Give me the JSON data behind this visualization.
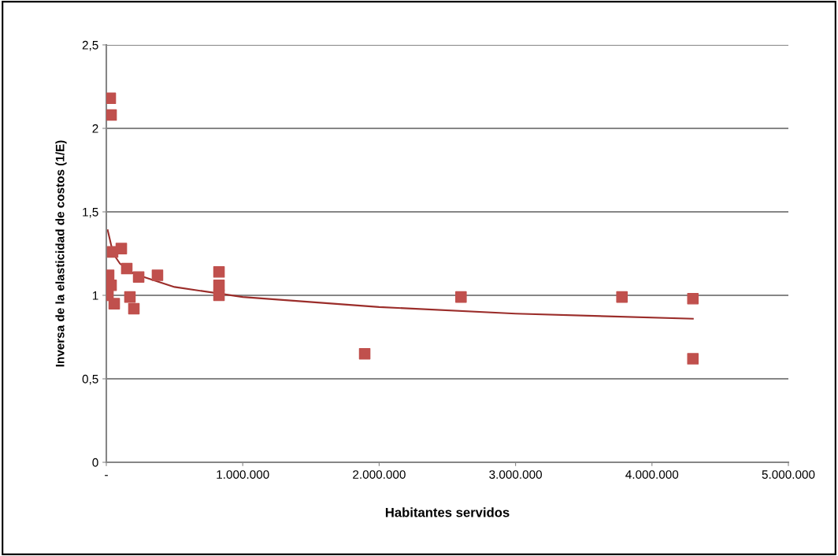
{
  "chart_data": {
    "type": "scatter",
    "xlabel": "Habitantes servidos",
    "ylabel": "Inversa de la elasticidad de costos (1/E)",
    "xlim": [
      0,
      5000000
    ],
    "ylim": [
      0,
      2.5
    ],
    "xticks": [
      {
        "value": 0,
        "label": "-"
      },
      {
        "value": 1000000,
        "label": "1.000.000"
      },
      {
        "value": 2000000,
        "label": "2.000.000"
      },
      {
        "value": 3000000,
        "label": "3.000.000"
      },
      {
        "value": 4000000,
        "label": "4.000.000"
      },
      {
        "value": 5000000,
        "label": "5.000.000"
      }
    ],
    "yticks": [
      0,
      {
        "value": 0.5,
        "label": "0,5"
      },
      1,
      {
        "value": 1.5,
        "label": "1,5"
      },
      2,
      {
        "value": 2.5,
        "label": "2,5"
      }
    ],
    "grid": "y",
    "marker": "square",
    "legend": false,
    "series": [
      {
        "color": "#c0504d",
        "x": [
          29000,
          35000,
          46000,
          110000,
          17000,
          150000,
          237000,
          375000,
          35000,
          12000,
          35000,
          58000,
          173000,
          202000,
          826000,
          826000,
          826000,
          1894000,
          2600000,
          3780000,
          4300000,
          4300000
        ],
        "values": [
          2.18,
          2.08,
          1.26,
          1.28,
          1.12,
          1.16,
          1.11,
          1.12,
          1.06,
          1.0,
          null,
          0.95,
          0.99,
          0.92,
          1.14,
          1.06,
          1.0,
          0.65,
          0.99,
          0.99,
          0.98,
          0.62
        ]
      },
      {
        "type": "line",
        "marker": "none",
        "color": "#9b2d2a",
        "x": [
          10000,
          50000,
          100000,
          200000,
          500000,
          1000000,
          2000000,
          3000000,
          4300000
        ],
        "values": [
          1.39,
          1.25,
          1.19,
          1.13,
          1.05,
          0.99,
          0.93,
          0.89,
          0.86
        ]
      }
    ]
  }
}
